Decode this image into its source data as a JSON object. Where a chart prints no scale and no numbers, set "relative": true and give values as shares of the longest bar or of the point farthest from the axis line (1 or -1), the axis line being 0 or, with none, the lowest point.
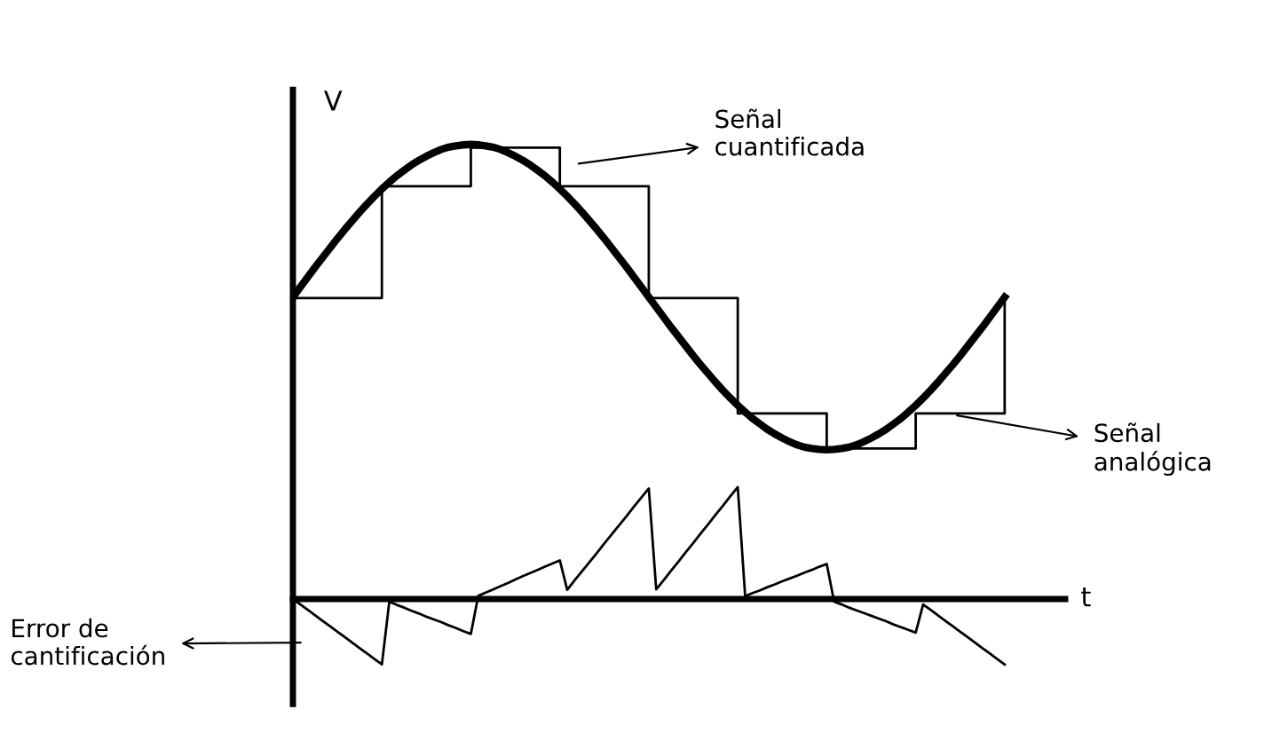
{
  "chart_data": {
    "type": "line",
    "relative": true,
    "xlabel": "t",
    "ylabel": "V",
    "categories": [
      null,
      null,
      null,
      null,
      null,
      null,
      null,
      null,
      null,
      null,
      null,
      null,
      null,
      null,
      null,
      null,
      null,
      null,
      null,
      null,
      null,
      null,
      null,
      null,
      null,
      null,
      null,
      null,
      null,
      null,
      null,
      null,
      null,
      null,
      null,
      null,
      null,
      null,
      null,
      null,
      null,
      null,
      null,
      null,
      null,
      null,
      null,
      null,
      null,
      null,
      null,
      null,
      null,
      null,
      null,
      null,
      null,
      null,
      null,
      null,
      null,
      null,
      null,
      null,
      null,
      null,
      null,
      null,
      null,
      null,
      null,
      null,
      null,
      null,
      null,
      null,
      null,
      null,
      null,
      null,
      null,
      null,
      null,
      null,
      null,
      null,
      null,
      null,
      null,
      null,
      null,
      null,
      null,
      null,
      null,
      null,
      null
    ],
    "series": [
      {
        "color": "#000000",
        "values": [
          0.664,
          0.686,
          0.708,
          0.73,
          0.751,
          0.772,
          0.793,
          0.813,
          0.832,
          0.851,
          0.869,
          0.886,
          0.902,
          0.917,
          0.931,
          0.943,
          0.955,
          0.965,
          0.974,
          0.982,
          0.989,
          0.994,
          0.997,
          0.999,
          1.0,
          0.999,
          0.997,
          0.994,
          0.989,
          0.982,
          0.974,
          0.965,
          0.955,
          0.943,
          0.931,
          0.917,
          0.902,
          0.886,
          0.869,
          0.851,
          0.832,
          0.813,
          0.793,
          0.772,
          0.751,
          0.73,
          0.708,
          0.686,
          0.664,
          0.642,
          0.62,
          0.598,
          0.577,
          0.556,
          0.535,
          0.515,
          0.496,
          0.477,
          0.459,
          0.442,
          0.426,
          0.411,
          0.397,
          0.385,
          0.373,
          0.363,
          0.354,
          0.346,
          0.339,
          0.334,
          0.331,
          0.329,
          0.328,
          0.329,
          0.331,
          0.334,
          0.339,
          0.346,
          0.354,
          0.363,
          0.373,
          0.385,
          0.397,
          0.411,
          0.426,
          0.442,
          0.459,
          0.477,
          0.496,
          0.515,
          0.535,
          0.556,
          0.577,
          0.598,
          0.62,
          0.642,
          0.664
        ]
      },
      {
        "type": "step",
        "color": "#000000",
        "values": [
          0.662,
          0.662,
          0.662,
          0.662,
          0.662,
          0.662,
          0.662,
          0.662,
          0.662,
          0.662,
          0.662,
          0.662,
          0.908,
          0.908,
          0.908,
          0.908,
          0.908,
          0.908,
          0.908,
          0.908,
          0.908,
          0.908,
          0.908,
          0.908,
          0.993,
          0.993,
          0.993,
          0.993,
          0.993,
          0.993,
          0.993,
          0.993,
          0.993,
          0.993,
          0.993,
          0.993,
          0.908,
          0.908,
          0.908,
          0.908,
          0.908,
          0.908,
          0.908,
          0.908,
          0.908,
          0.908,
          0.908,
          0.908,
          0.662,
          0.662,
          0.662,
          0.662,
          0.662,
          0.662,
          0.662,
          0.662,
          0.662,
          0.662,
          0.662,
          0.662,
          0.408,
          0.408,
          0.408,
          0.408,
          0.408,
          0.408,
          0.408,
          0.408,
          0.408,
          0.408,
          0.408,
          0.408,
          0.331,
          0.331,
          0.331,
          0.331,
          0.331,
          0.331,
          0.331,
          0.331,
          0.331,
          0.331,
          0.331,
          0.331,
          0.408,
          0.408,
          0.408,
          0.408,
          0.408,
          0.408,
          0.408,
          0.408,
          0.408,
          0.408,
          0.408,
          0.408,
          0.662
        ]
      },
      {
        "color": "#000000",
        "values": [
          0,
          -0.012,
          -0.024,
          -0.036,
          -0.048,
          -0.06,
          -0.072,
          -0.084,
          -0.096,
          -0.108,
          -0.12,
          -0.132,
          -0.144,
          -0.006,
          -0.013,
          -0.019,
          -0.026,
          -0.032,
          -0.039,
          -0.045,
          -0.051,
          -0.058,
          -0.064,
          -0.071,
          -0.077,
          0.007,
          0.014,
          0.021,
          0.028,
          0.035,
          0.043,
          0.05,
          0.057,
          0.064,
          0.071,
          0.078,
          0.085,
          0.02,
          0.041,
          0.061,
          0.081,
          0.101,
          0.122,
          0.142,
          0.162,
          0.182,
          0.203,
          0.223,
          0.243,
          0.021,
          0.041,
          0.062,
          0.082,
          0.103,
          0.123,
          0.144,
          0.164,
          0.185,
          0.205,
          0.226,
          0.246,
          0.006,
          0.013,
          0.019,
          0.026,
          0.032,
          0.039,
          0.045,
          0.051,
          0.058,
          0.064,
          0.071,
          0.077,
          -0.006,
          -0.012,
          -0.019,
          -0.025,
          -0.031,
          -0.037,
          -0.043,
          -0.049,
          -0.056,
          -0.062,
          -0.068,
          -0.074,
          -0.012,
          -0.024,
          -0.036,
          -0.048,
          -0.06,
          -0.072,
          -0.084,
          -0.096,
          -0.108,
          -0.12,
          -0.132,
          -0.144
        ]
      }
    ],
    "annotations": [
      "Señal\ncuantificada",
      "Señal\nanalógica",
      "Error de\ncantificación"
    ]
  }
}
